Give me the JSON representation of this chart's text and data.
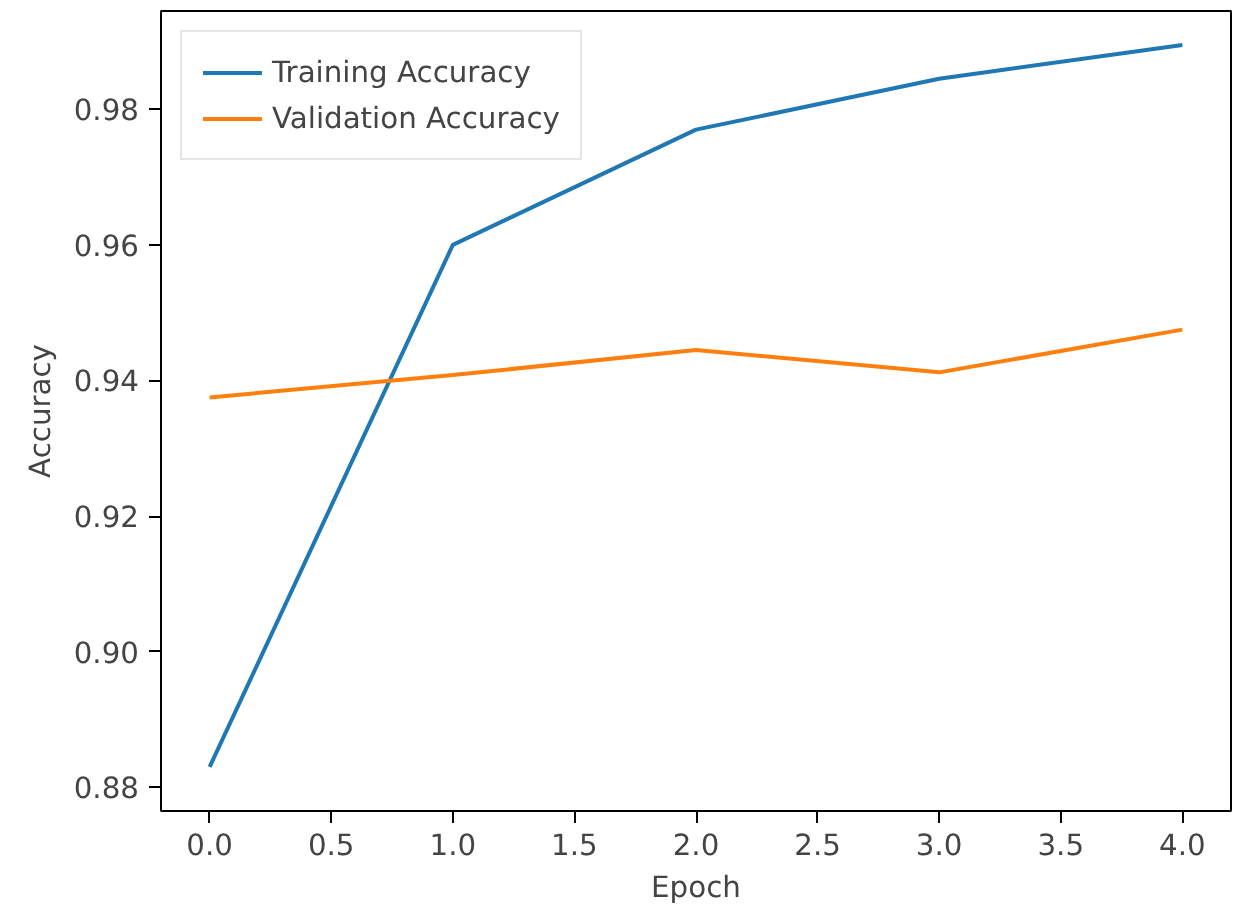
{
  "chart_data": {
    "type": "line",
    "xlabel": "Epoch",
    "ylabel": "Accuracy",
    "x": [
      0,
      1,
      2,
      3,
      4
    ],
    "series": [
      {
        "name": "Training Accuracy",
        "color": "#1f77b4",
        "values": [
          0.883,
          0.96,
          0.977,
          0.9845,
          0.9895
        ]
      },
      {
        "name": "Validation Accuracy",
        "color": "#ff7f0e",
        "values": [
          0.9375,
          0.9408,
          0.9445,
          0.9412,
          0.9475
        ]
      }
    ],
    "xlim": [
      -0.2,
      4.2
    ],
    "ylim": [
      0.8765,
      0.9945
    ],
    "xticks": [
      {
        "value": 0,
        "label": "0.0"
      },
      {
        "value": 0.5,
        "label": "0.5"
      },
      {
        "value": 1,
        "label": "1.0"
      },
      {
        "value": 1.5,
        "label": "1.5"
      },
      {
        "value": 2,
        "label": "2.0"
      },
      {
        "value": 2.5,
        "label": "2.5"
      },
      {
        "value": 3,
        "label": "3.0"
      },
      {
        "value": 3.5,
        "label": "3.5"
      },
      {
        "value": 4,
        "label": "4.0"
      }
    ],
    "yticks": [
      {
        "value": 0.88,
        "label": "0.88"
      },
      {
        "value": 0.9,
        "label": "0.90"
      },
      {
        "value": 0.92,
        "label": "0.92"
      },
      {
        "value": 0.94,
        "label": "0.94"
      },
      {
        "value": 0.96,
        "label": "0.96"
      },
      {
        "value": 0.98,
        "label": "0.98"
      }
    ],
    "legend": "top left",
    "grid": false
  }
}
